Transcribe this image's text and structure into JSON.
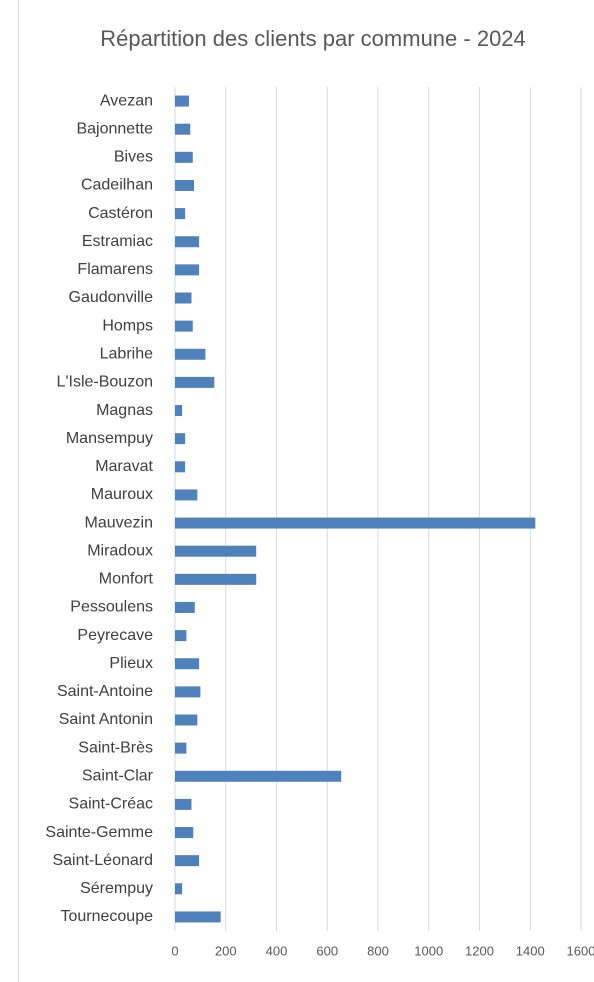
{
  "chart_data": {
    "type": "barh",
    "title": "Répartition des clients par commune - 2024",
    "categories": [
      "Avezan",
      "Bajonnette",
      "Bives",
      "Cadeilhan",
      "Castéron",
      "Estramiac",
      "Flamarens",
      "Gaudonville",
      "Homps",
      "Labrihe",
      "L'Isle-Bouzon",
      "Magnas",
      "Mansempuy",
      "Maravat",
      "Mauroux",
      "Mauvezin",
      "Miradoux",
      "Monfort",
      "Pessoulens",
      "Peyrecave",
      "Plieux",
      "Saint-Antoine",
      "Saint Antonin",
      "Saint-Brès",
      "Saint-Clar",
      "Saint-Créac",
      "Sainte-Gemme",
      "Saint-Léonard",
      "Sérempuy",
      "Tournecoupe"
    ],
    "values": [
      55,
      60,
      70,
      75,
      40,
      95,
      95,
      65,
      70,
      120,
      155,
      28,
      40,
      40,
      88,
      1420,
      320,
      320,
      78,
      45,
      95,
      100,
      88,
      45,
      655,
      65,
      72,
      95,
      28,
      180
    ],
    "color": "#4f81bd",
    "xlim": [
      0,
      1600
    ],
    "xticks": [
      0,
      200,
      400,
      600,
      800,
      1000,
      1200,
      1400,
      1600
    ],
    "grid": true
  }
}
